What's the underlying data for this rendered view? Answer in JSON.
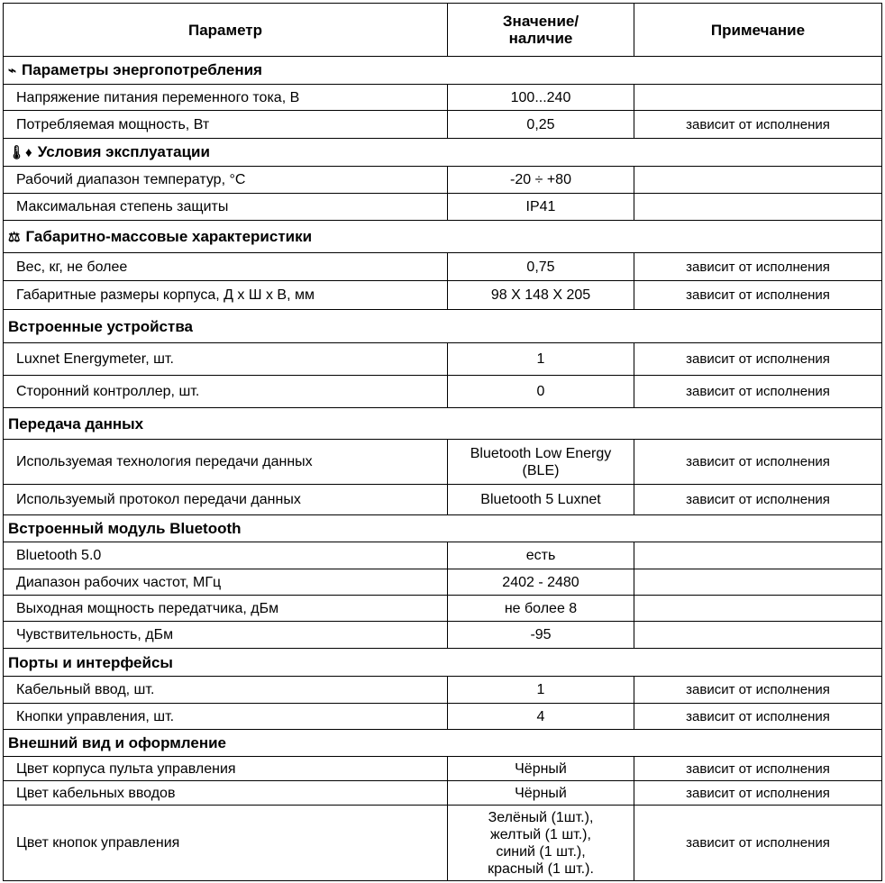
{
  "header": {
    "param": "Параметр",
    "value": "Значение/\nналичие",
    "note": "Примечание"
  },
  "sections": [
    {
      "title": "Параметры энергопотребления",
      "icon": "plug-icon",
      "glyph": "⌁",
      "rows": [
        {
          "param": "Напряжение питания переменного тока, В",
          "value": "100...240",
          "note": ""
        },
        {
          "param": "Потребляемая мощность, Вт",
          "value": "0,25",
          "note": "зависит от исполнения"
        }
      ]
    },
    {
      "title": "Условия  эксплуатации",
      "icon": "thermometer-drop-icon",
      "glyph": "🌡︎♦",
      "rows": [
        {
          "param": "Рабочий диапазон температур, °C",
          "value": "-20 ÷ +80",
          "note": ""
        },
        {
          "param": "Максимальная степень защиты",
          "value": "IP41",
          "note": ""
        }
      ]
    },
    {
      "title": "Габаритно-массовые характеристики",
      "icon": "scales-icon",
      "glyph": "⚖",
      "rows": [
        {
          "param": "Вес, кг, не более",
          "value": "0,75",
          "note": "зависит от исполнения"
        },
        {
          "param": "Габаритные размеры корпуса, Д х Ш х В, мм",
          "value": "98 X 148 X 205",
          "note": "зависит от исполнения"
        }
      ]
    },
    {
      "title": "Встроенные устройства",
      "icon": "",
      "glyph": "",
      "rows": [
        {
          "param": "Luxnet Energymeter, шт.",
          "value": "1",
          "note": "зависит от исполнения"
        },
        {
          "param": "Сторонний контроллер, шт.",
          "value": "0",
          "note": "зависит от исполнения"
        }
      ]
    },
    {
      "title": "Передача данных",
      "icon": "",
      "glyph": "",
      "rows": [
        {
          "param": "Используемая технология передачи данных",
          "value": "Bluetooth Low Energy\n(BLE)",
          "note": "зависит от исполнения"
        },
        {
          "param": "Используемый протокол передачи данных",
          "value": "Bluetooth 5 Luxnet",
          "note": "зависит от исполнения"
        }
      ]
    },
    {
      "title": "Встроенный модуль Bluetooth",
      "icon": "",
      "glyph": "",
      "rows": [
        {
          "param": "Bluetooth 5.0",
          "value": "есть",
          "note": ""
        },
        {
          "param": "Диапазон рабочих частот, МГц",
          "value": "2402 - 2480",
          "note": ""
        },
        {
          "param": "Выходная мощность передатчика, дБм",
          "value": "не более 8",
          "note": ""
        },
        {
          "param": "Чувствительность, дБм",
          "value": "-95",
          "note": ""
        }
      ]
    },
    {
      "title": "Порты и интерфейсы",
      "icon": "",
      "glyph": "",
      "rows": [
        {
          "param": "Кабельный ввод, шт.",
          "value": "1",
          "note": "зависит от исполнения"
        },
        {
          "param": "Кнопки управления, шт.",
          "value": "4",
          "note": "зависит от исполнения"
        }
      ]
    },
    {
      "title": "Внешний вид и оформление",
      "icon": "",
      "glyph": "",
      "rows": [
        {
          "param": "Цвет корпуса пульта управления",
          "value": "Чёрный",
          "note": "зависит от исполнения"
        },
        {
          "param": "Цвет кабельных вводов",
          "value": "Чёрный",
          "note": "зависит от исполнения"
        },
        {
          "param": "Цвет кнопок управления",
          "value": "Зелёный (1шт.),\nжелтый (1 шт.),\nсиний (1 шт.),\nкрасный (1 шт.).",
          "note": "зависит от исполнения"
        }
      ]
    }
  ]
}
